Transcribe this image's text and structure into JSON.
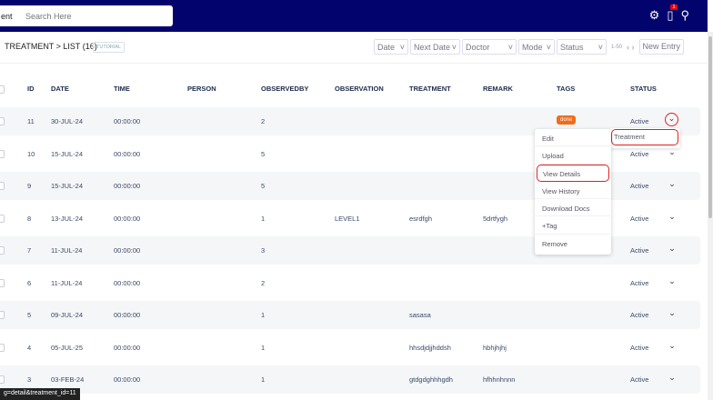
{
  "header": {
    "search_prefix": "ent",
    "search_placeholder": "Search Here",
    "notification_count": "1",
    "icons": [
      "gear-icon",
      "bell-icon",
      "user-icon"
    ]
  },
  "breadcrumb": "TREATMENT > LIST (16)",
  "tutorial": "TUTORIAL",
  "filters": [
    "Date",
    "Next Date",
    "Doctor",
    "Mode",
    "Status"
  ],
  "pagination": "1-50",
  "new_entry": "New Entry",
  "columns": [
    "ID",
    "DATE",
    "TIME",
    "PERSON",
    "OBSERVEDBY",
    "OBSERVATION",
    "TREATMENT",
    "REMARK",
    "TAGS",
    "STATUS"
  ],
  "rows": [
    {
      "id": "11",
      "date": "30-JUL-24",
      "time": "00:00:00",
      "person": "",
      "observedby": "2",
      "observation": "",
      "treatment": "",
      "remark": "",
      "tag": "done",
      "status": "Active"
    },
    {
      "id": "10",
      "date": "15-JUL-24",
      "time": "00:00:00",
      "person": "",
      "observedby": "5",
      "observation": "",
      "treatment": "",
      "remark": "",
      "tag": "",
      "status": "Active"
    },
    {
      "id": "9",
      "date": "15-JUL-24",
      "time": "00:00:00",
      "person": "",
      "observedby": "5",
      "observation": "",
      "treatment": "",
      "remark": "",
      "tag": "",
      "status": "Active"
    },
    {
      "id": "8",
      "date": "13-JUL-24",
      "time": "00:00:00",
      "person": "",
      "observedby": "1",
      "observation": "LEVEL1",
      "treatment": "esrdfgh",
      "remark": "5drtfygh",
      "tag": "",
      "status": "Active"
    },
    {
      "id": "7",
      "date": "11-JUL-24",
      "time": "00:00:00",
      "person": "",
      "observedby": "3",
      "observation": "",
      "treatment": "",
      "remark": "",
      "tag": "",
      "status": "Active"
    },
    {
      "id": "6",
      "date": "11-JUL-24",
      "time": "00:00:00",
      "person": "",
      "observedby": "2",
      "observation": "",
      "treatment": "",
      "remark": "",
      "tag": "",
      "status": "Active"
    },
    {
      "id": "5",
      "date": "09-JUL-24",
      "time": "00:00:00",
      "person": "",
      "observedby": "1",
      "observation": "",
      "treatment": "sasasa",
      "remark": "",
      "tag": "",
      "status": "Active"
    },
    {
      "id": "4",
      "date": "05-JUL-25",
      "time": "00:00:00",
      "person": "",
      "observedby": "1",
      "observation": "",
      "treatment": "hhsdjdjjhddsh",
      "remark": "hbhjhjhj",
      "tag": "",
      "status": "Active"
    },
    {
      "id": "3",
      "date": "03-FEB-24",
      "time": "00:00:00",
      "person": "",
      "observedby": "1",
      "observation": "",
      "treatment": "gtdgdghhhgdh",
      "remark": "hfhhnhnnn",
      "tag": "",
      "status": "Active"
    }
  ],
  "row_menu": [
    "Edit",
    "Upload",
    "View Details",
    "View History",
    "Download Docs",
    "+Tag",
    "Remove"
  ],
  "submenu": "Treatment",
  "status_url": "g=detail&treatment_id=11",
  "colors": {
    "topbar": "#03036e",
    "tag_done": "#f36b1c",
    "highlight": "#e02020"
  }
}
